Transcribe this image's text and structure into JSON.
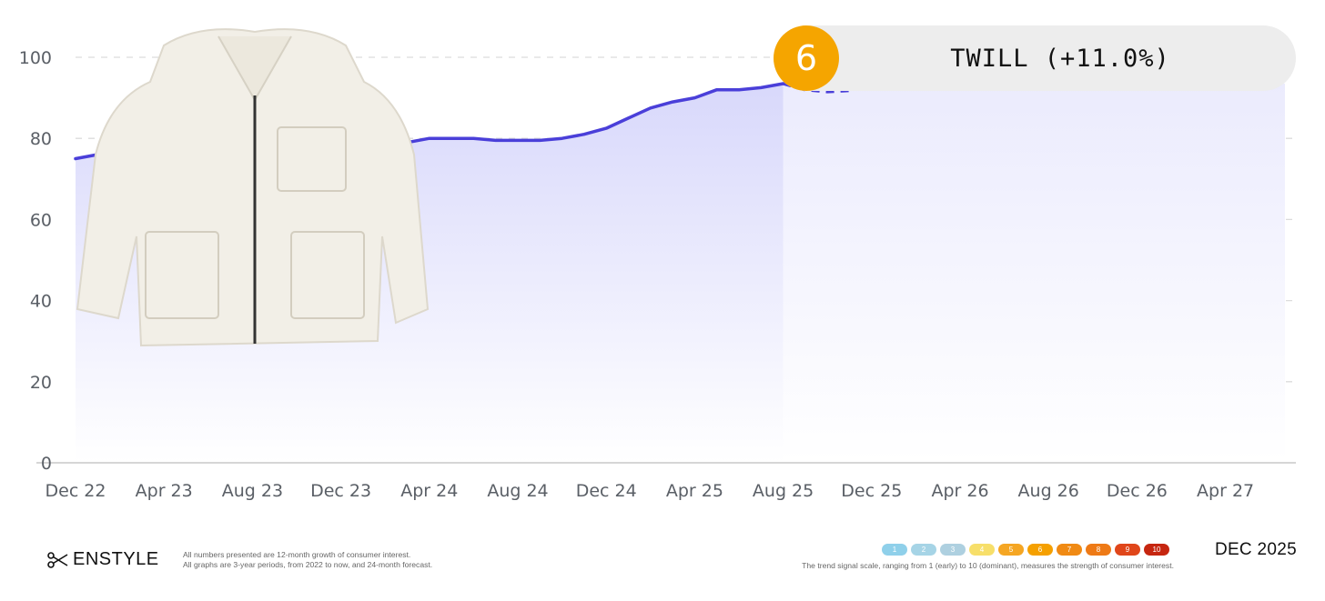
{
  "chart_data": {
    "type": "area",
    "title": "TWILL (+11.0%)",
    "ylim": [
      0,
      100
    ],
    "y_ticks": [
      "0",
      "20",
      "40",
      "60",
      "80",
      "100"
    ],
    "x_ticks": [
      "Dec 22",
      "Apr 23",
      "Aug 23",
      "Dec 23",
      "Apr 24",
      "Aug 24",
      "Dec 24",
      "Apr 25",
      "Aug 25",
      "Dec 25",
      "Apr 26",
      "Aug 26",
      "Dec 26",
      "Apr 27"
    ],
    "grid": true,
    "line_color": "#4a3fd9",
    "historical": {
      "x": [
        "2022-12",
        "2023-01",
        "2023-02",
        "2023-03",
        "2023-04",
        "2023-05",
        "2023-06",
        "2023-07",
        "2023-08",
        "2023-09",
        "2023-10",
        "2023-11",
        "2023-12",
        "2024-01",
        "2024-02",
        "2024-03",
        "2024-04",
        "2024-05",
        "2024-06",
        "2024-07",
        "2024-08",
        "2024-09",
        "2024-10",
        "2024-11",
        "2024-12",
        "2025-01",
        "2025-02",
        "2025-03",
        "2025-04",
        "2025-05",
        "2025-06",
        "2025-07",
        "2025-08"
      ],
      "values": [
        75.0,
        76.0,
        75.5,
        76.0,
        76.5,
        76.5,
        77.0,
        77.0,
        77.5,
        78.0,
        78.0,
        78.0,
        78.0,
        78.0,
        78.0,
        79.0,
        80.0,
        80.0,
        80.0,
        79.5,
        79.5,
        79.5,
        80.0,
        81.0,
        82.5,
        85.0,
        87.5,
        89.0,
        90.0,
        92.0,
        92.0,
        92.5,
        93.5
      ]
    },
    "forecast": {
      "x": [
        "2025-08",
        "2025-09",
        "2025-10",
        "2025-11"
      ],
      "values": [
        93.5,
        92.0,
        91.5,
        91.8
      ]
    }
  },
  "header": {
    "rank": "6",
    "trend_title": "TWILL (+11.0%)",
    "badge_color": "#f5a500"
  },
  "product": {
    "image": "white twill zip jacket"
  },
  "footer": {
    "brand": "ENSTYLE",
    "brand_icon": "scissors-icon",
    "note_line1": "All numbers presented are 12-month growth of consumer interest.",
    "note_line2": "All graphs are 3-year periods, from 2022 to now, and 24-month forecast.",
    "signal_scale": [
      {
        "label": "1",
        "color": "#8fd0ea"
      },
      {
        "label": "2",
        "color": "#a6d4e6"
      },
      {
        "label": "3",
        "color": "#aed0e0"
      },
      {
        "label": "4",
        "color": "#f7df6a"
      },
      {
        "label": "5",
        "color": "#f5a623"
      },
      {
        "label": "6",
        "color": "#f5a000"
      },
      {
        "label": "7",
        "color": "#f08a14"
      },
      {
        "label": "8",
        "color": "#ee7a16"
      },
      {
        "label": "9",
        "color": "#e0461a"
      },
      {
        "label": "10",
        "color": "#c62610"
      }
    ],
    "scale_caption": "The trend signal scale, ranging from 1 (early) to 10 (dominant), measures the strength of consumer interest.",
    "report_date": "DEC 2025"
  }
}
